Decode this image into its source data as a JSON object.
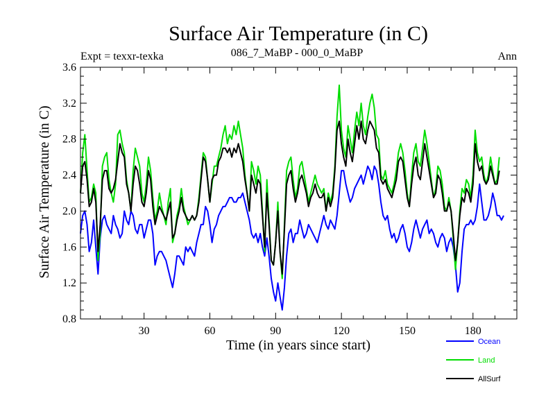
{
  "chart_data": {
    "type": "line",
    "title": "Surface Air Temperature (in C)",
    "subtitle_left": "Expt = texxr-texka",
    "subtitle_center": "086_7_MaBP - 000_0_MaBP",
    "subtitle_right": "Ann",
    "xlabel": "Time (in years since start)",
    "ylabel": "Surface Air Temperature (in C)",
    "xlim": [
      1,
      200
    ],
    "ylim": [
      0.8,
      3.6
    ],
    "x_ticks": [
      30,
      60,
      90,
      120,
      150,
      180
    ],
    "x_tick_labels": [
      "30",
      "60",
      "90",
      "120",
      "150",
      "180"
    ],
    "y_ticks": [
      0.8,
      1.2,
      1.6,
      2.0,
      2.4,
      2.8,
      3.2,
      3.6
    ],
    "y_tick_labels": [
      "0.8",
      "1.2",
      "1.6",
      "2.0",
      "2.4",
      "2.8",
      "3.2",
      "3.6"
    ],
    "x_start": 1,
    "series": [
      {
        "name": "Ocean",
        "color": "#0000ff",
        "values": [
          1.75,
          1.95,
          2.0,
          1.85,
          1.55,
          1.65,
          1.9,
          1.6,
          1.3,
          1.7,
          1.9,
          1.95,
          1.85,
          1.8,
          1.75,
          1.95,
          1.85,
          1.8,
          1.7,
          1.75,
          2.0,
          1.9,
          1.85,
          2.0,
          1.95,
          1.8,
          1.75,
          1.85,
          1.85,
          1.7,
          1.8,
          1.9,
          1.9,
          1.75,
          1.4,
          1.5,
          1.55,
          1.55,
          1.5,
          1.45,
          1.35,
          1.25,
          1.15,
          1.3,
          1.5,
          1.5,
          1.45,
          1.4,
          1.6,
          1.55,
          1.6,
          1.55,
          1.5,
          1.65,
          1.75,
          1.85,
          1.85,
          2.05,
          2.0,
          1.85,
          1.65,
          1.8,
          1.85,
          1.95,
          2.0,
          2.05,
          2.05,
          2.1,
          2.15,
          2.15,
          2.1,
          2.1,
          2.15,
          2.15,
          2.2,
          2.1,
          2.0,
          1.9,
          1.75,
          1.7,
          1.75,
          1.65,
          1.75,
          1.6,
          1.5,
          1.7,
          1.5,
          1.25,
          1.1,
          1.0,
          1.2,
          1.05,
          0.9,
          1.15,
          1.5,
          1.75,
          1.8,
          1.65,
          1.75,
          1.75,
          1.9,
          1.8,
          1.7,
          1.75,
          1.85,
          1.8,
          1.75,
          1.7,
          1.65,
          1.75,
          1.85,
          1.95,
          1.85,
          1.8,
          1.9,
          1.85,
          1.8,
          1.95,
          2.2,
          2.45,
          2.45,
          2.3,
          2.2,
          2.1,
          2.15,
          2.25,
          2.3,
          2.35,
          2.4,
          2.3,
          2.4,
          2.5,
          2.45,
          2.35,
          2.5,
          2.45,
          2.3,
          2.1,
          1.95,
          1.9,
          1.95,
          1.8,
          1.7,
          1.75,
          1.65,
          1.7,
          1.8,
          1.85,
          1.75,
          1.6,
          1.55,
          1.65,
          1.8,
          1.9,
          1.8,
          1.7,
          1.8,
          1.85,
          1.9,
          1.75,
          1.8,
          1.75,
          1.65,
          1.6,
          1.7,
          1.75,
          1.7,
          1.55,
          1.65,
          1.7,
          1.6,
          1.4,
          1.1,
          1.2,
          1.55,
          1.8,
          1.85,
          1.85,
          1.9,
          1.85,
          1.9,
          2.05,
          2.3,
          2.1,
          1.9,
          1.9,
          1.95,
          2.05,
          2.2,
          2.1,
          1.95,
          1.95,
          1.9,
          1.95
        ]
      },
      {
        "name": "Land",
        "color": "#00dd00",
        "values": [
          2.2,
          2.65,
          2.85,
          2.45,
          2.1,
          2.15,
          2.3,
          2.2,
          1.45,
          1.75,
          2.5,
          2.6,
          2.65,
          2.35,
          2.2,
          2.1,
          2.3,
          2.85,
          2.9,
          2.75,
          2.65,
          2.35,
          2.2,
          2.0,
          2.45,
          2.7,
          2.6,
          2.5,
          2.2,
          2.1,
          2.3,
          2.6,
          2.45,
          2.15,
          1.9,
          2.0,
          2.2,
          2.05,
          1.95,
          1.85,
          2.1,
          2.25,
          1.65,
          1.75,
          1.95,
          2.05,
          2.25,
          2.05,
          1.95,
          1.85,
          1.9,
          1.95,
          1.9,
          1.95,
          2.15,
          2.4,
          2.65,
          2.6,
          2.35,
          2.1,
          2.3,
          2.5,
          2.5,
          2.6,
          2.7,
          2.85,
          2.95,
          2.75,
          2.85,
          2.8,
          2.95,
          2.85,
          3.0,
          2.85,
          2.7,
          2.4,
          2.2,
          2.0,
          2.55,
          2.45,
          2.3,
          2.5,
          2.4,
          2.0,
          1.55,
          2.35,
          1.9,
          1.45,
          1.4,
          1.65,
          2.1,
          1.55,
          1.25,
          1.85,
          2.45,
          2.55,
          2.6,
          2.35,
          2.15,
          2.25,
          2.5,
          2.55,
          2.4,
          2.25,
          2.1,
          2.2,
          2.3,
          2.4,
          2.3,
          2.25,
          2.2,
          2.25,
          2.0,
          2.2,
          2.1,
          2.2,
          2.5,
          3.05,
          3.4,
          2.9,
          2.7,
          2.6,
          2.95,
          2.8,
          2.65,
          2.9,
          3.1,
          2.95,
          3.2,
          2.95,
          2.85,
          3.05,
          3.2,
          3.3,
          3.15,
          2.85,
          2.8,
          2.4,
          2.35,
          2.45,
          2.3,
          2.25,
          2.2,
          2.3,
          2.45,
          2.65,
          2.75,
          2.65,
          2.45,
          2.2,
          2.05,
          2.4,
          2.65,
          2.75,
          2.55,
          2.5,
          2.7,
          2.9,
          2.75,
          2.55,
          2.35,
          2.15,
          2.25,
          2.5,
          2.45,
          2.3,
          2.05,
          2.0,
          2.15,
          2.0,
          1.7,
          1.35,
          1.65,
          2.0,
          2.25,
          2.2,
          2.35,
          2.3,
          2.15,
          2.4,
          2.9,
          2.65,
          2.55,
          2.6,
          2.4,
          2.3,
          2.4,
          2.6,
          2.45,
          2.3,
          2.35,
          2.6
        ]
      },
      {
        "name": "AllSurf",
        "color": "#000000",
        "values": [
          2.2,
          2.5,
          2.55,
          2.35,
          2.05,
          2.1,
          2.25,
          2.1,
          1.55,
          1.85,
          2.35,
          2.45,
          2.45,
          2.25,
          2.2,
          2.25,
          2.35,
          2.55,
          2.75,
          2.65,
          2.6,
          2.3,
          2.2,
          2.0,
          2.3,
          2.5,
          2.45,
          2.3,
          2.1,
          2.05,
          2.2,
          2.45,
          2.35,
          2.05,
          1.85,
          1.95,
          2.05,
          2.0,
          1.95,
          1.9,
          2.0,
          2.1,
          1.7,
          1.75,
          1.9,
          2.0,
          2.15,
          2.0,
          1.95,
          1.9,
          1.9,
          1.95,
          1.9,
          1.95,
          2.1,
          2.35,
          2.6,
          2.55,
          2.35,
          2.1,
          2.35,
          2.4,
          2.4,
          2.55,
          2.6,
          2.7,
          2.7,
          2.65,
          2.7,
          2.6,
          2.7,
          2.65,
          2.75,
          2.65,
          2.55,
          2.35,
          2.2,
          2.0,
          2.4,
          2.3,
          2.2,
          2.35,
          2.3,
          1.95,
          1.6,
          2.2,
          1.85,
          1.45,
          1.4,
          1.65,
          2.0,
          1.55,
          1.3,
          1.8,
          2.3,
          2.4,
          2.45,
          2.25,
          2.1,
          2.2,
          2.35,
          2.4,
          2.3,
          2.2,
          2.05,
          2.15,
          2.2,
          2.3,
          2.2,
          2.15,
          2.15,
          2.2,
          2.0,
          2.15,
          2.05,
          2.15,
          2.45,
          2.9,
          3.0,
          2.75,
          2.6,
          2.5,
          2.8,
          2.65,
          2.55,
          2.75,
          2.95,
          2.8,
          3.0,
          2.8,
          2.75,
          2.9,
          3.0,
          2.95,
          2.9,
          2.7,
          2.65,
          2.35,
          2.3,
          2.35,
          2.25,
          2.2,
          2.15,
          2.25,
          2.35,
          2.55,
          2.6,
          2.55,
          2.35,
          2.15,
          2.05,
          2.3,
          2.5,
          2.6,
          2.4,
          2.35,
          2.55,
          2.75,
          2.6,
          2.45,
          2.3,
          2.15,
          2.2,
          2.4,
          2.35,
          2.2,
          2.0,
          2.0,
          2.1,
          2.0,
          1.75,
          1.45,
          1.65,
          1.95,
          2.15,
          2.1,
          2.25,
          2.2,
          2.1,
          2.3,
          2.75,
          2.55,
          2.45,
          2.5,
          2.35,
          2.3,
          2.35,
          2.5,
          2.4,
          2.3,
          2.3,
          2.45
        ]
      }
    ],
    "legend": {
      "position": "bottom-right",
      "entries": [
        "Ocean",
        "Land",
        "AllSurf"
      ]
    }
  }
}
